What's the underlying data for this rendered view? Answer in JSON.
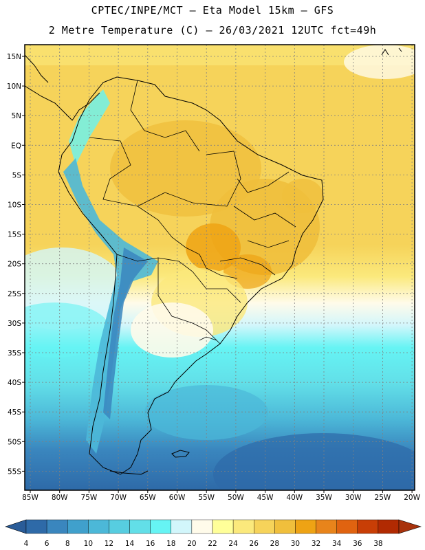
{
  "header": {
    "line1": "CPTEC/INPE/MCT –  Eta Model 15km – GFS",
    "line2": "2 Metre Temperature (C) – 26/03/2021 12UTC fct=49h"
  },
  "map": {
    "lat_labels": [
      "15N",
      "10N",
      "5N",
      "EQ",
      "5S",
      "10S",
      "15S",
      "20S",
      "25S",
      "30S",
      "35S",
      "40S",
      "45S",
      "50S",
      "55S"
    ],
    "lon_labels": [
      "85W",
      "80W",
      "75W",
      "70W",
      "65W",
      "60W",
      "55W",
      "50W",
      "45W",
      "40W",
      "35W",
      "30W",
      "25W",
      "20W"
    ],
    "lat_range": [
      -58,
      17
    ],
    "lon_range": [
      -86,
      -19
    ]
  },
  "colorbar": {
    "ticks": [
      "4",
      "6",
      "8",
      "10",
      "12",
      "14",
      "16",
      "18",
      "20",
      "22",
      "24",
      "26",
      "28",
      "30",
      "32",
      "34",
      "36",
      "38"
    ],
    "colors": [
      "#2e6aa8",
      "#3a86be",
      "#40a0cc",
      "#4cb8d8",
      "#57cde0",
      "#62dfe8",
      "#66f4f4",
      "#d2f6fb",
      "#fffbea",
      "#ffff99",
      "#fbe97c",
      "#f6d35a",
      "#f0bf3c",
      "#eea314",
      "#e8841b",
      "#e06310",
      "#c83e06",
      "#b12a02"
    ],
    "low_color": "#2a5c98",
    "high_color": "#a8320c"
  }
}
